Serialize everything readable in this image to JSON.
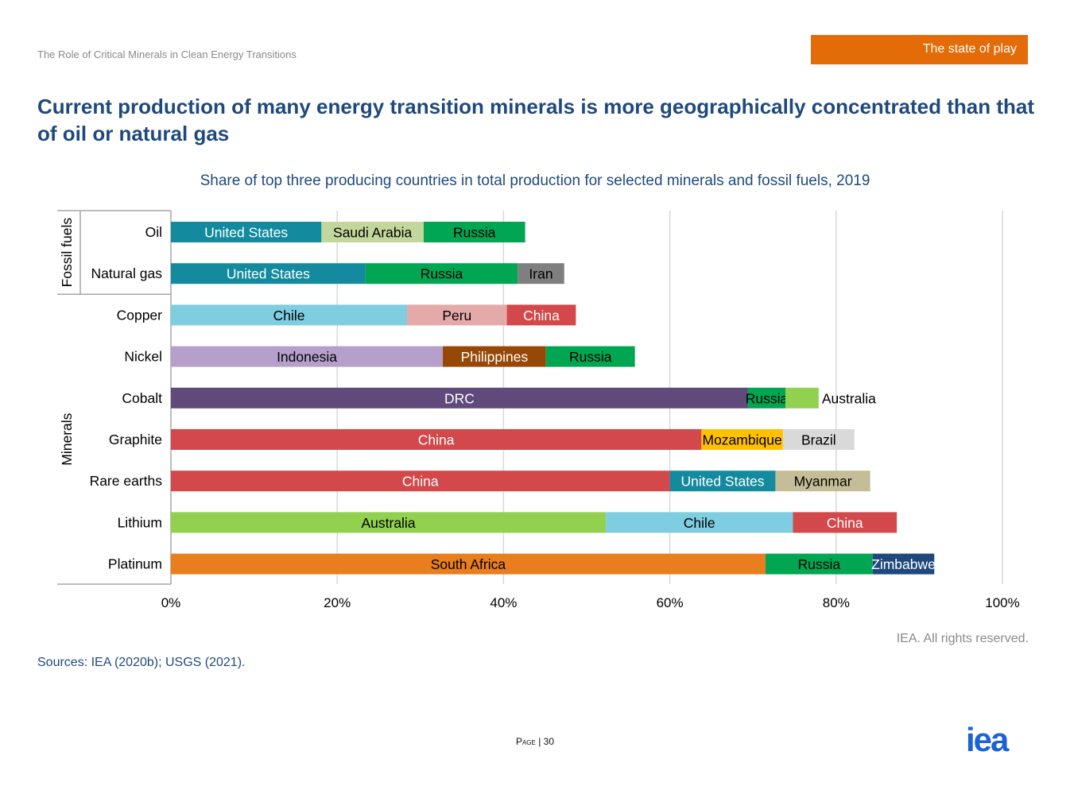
{
  "header": {
    "report_title": "The Role of Critical Minerals in Clean Energy Transitions",
    "section_badge": "The state of play",
    "page_title": "Current production of many energy transition minerals is more geographically concentrated than that of oil or natural gas"
  },
  "chart_data": {
    "type": "bar",
    "orientation": "horizontal",
    "stacked": true,
    "title": "Share of top three producing countries in total production for selected minerals and fossil fuels, 2019",
    "xlim": [
      0,
      100
    ],
    "x_ticks": [
      "0%",
      "20%",
      "40%",
      "60%",
      "80%",
      "100%"
    ],
    "grid": true,
    "groups": [
      {
        "name": "Fossil fuels",
        "categories": [
          "Oil",
          "Natural gas"
        ]
      },
      {
        "name": "Minerals",
        "categories": [
          "Copper",
          "Nickel",
          "Cobalt",
          "Graphite",
          "Rare earths",
          "Lithium",
          "Platinum"
        ]
      }
    ],
    "categories": [
      "Oil",
      "Natural gas",
      "Copper",
      "Nickel",
      "Cobalt",
      "Graphite",
      "Rare earths",
      "Lithium",
      "Platinum"
    ],
    "bars": [
      {
        "category": "Oil",
        "segments": [
          {
            "country": "United States",
            "value": 18.1,
            "color": "#138a9e",
            "text_color": "#ffffff"
          },
          {
            "country": "Saudi Arabia",
            "value": 12.3,
            "color": "#c3d69b",
            "text_color": "#000000"
          },
          {
            "country": "Russia",
            "value": 12.2,
            "color": "#00a651",
            "text_color": "#000000"
          }
        ]
      },
      {
        "category": "Natural gas",
        "segments": [
          {
            "country": "United States",
            "value": 23.4,
            "color": "#138a9e",
            "text_color": "#ffffff"
          },
          {
            "country": "Russia",
            "value": 18.3,
            "color": "#00a651",
            "text_color": "#000000"
          },
          {
            "country": "Iran",
            "value": 5.6,
            "color": "#7f7f7f",
            "text_color": "#000000"
          }
        ]
      },
      {
        "category": "Copper",
        "segments": [
          {
            "country": "Chile",
            "value": 28.4,
            "color": "#7fcde0",
            "text_color": "#000000"
          },
          {
            "country": "Peru",
            "value": 12.0,
            "color": "#e4a9a9",
            "text_color": "#000000"
          },
          {
            "country": "China",
            "value": 8.3,
            "color": "#d2484b",
            "text_color": "#ffffff"
          }
        ]
      },
      {
        "category": "Nickel",
        "segments": [
          {
            "country": "Indonesia",
            "value": 32.7,
            "color": "#b6a0cb",
            "text_color": "#000000"
          },
          {
            "country": "Philippines",
            "value": 12.4,
            "color": "#974806",
            "text_color": "#ffffff"
          },
          {
            "country": "Russia",
            "value": 10.7,
            "color": "#00a651",
            "text_color": "#000000"
          }
        ]
      },
      {
        "category": "Cobalt",
        "segments": [
          {
            "country": "DRC",
            "value": 69.4,
            "color": "#604a7b",
            "text_color": "#ffffff"
          },
          {
            "country": "Russia",
            "value": 4.5,
            "color": "#00a651",
            "text_color": "#000000"
          },
          {
            "country": "Australia",
            "value": 4.0,
            "color": "#92d050",
            "text_color": "#000000",
            "label_outside": true
          }
        ]
      },
      {
        "category": "Graphite",
        "segments": [
          {
            "country": "China",
            "value": 63.8,
            "color": "#d2484b",
            "text_color": "#ffffff"
          },
          {
            "country": "Mozambique",
            "value": 9.8,
            "color": "#ffc000",
            "text_color": "#000000"
          },
          {
            "country": "Brazil",
            "value": 8.6,
            "color": "#d9d9d9",
            "text_color": "#000000"
          }
        ]
      },
      {
        "category": "Rare earths",
        "segments": [
          {
            "country": "China",
            "value": 60.0,
            "color": "#d2484b",
            "text_color": "#ffffff"
          },
          {
            "country": "United States",
            "value": 12.7,
            "color": "#138a9e",
            "text_color": "#ffffff"
          },
          {
            "country": "Myanmar",
            "value": 11.4,
            "color": "#c4bd97",
            "text_color": "#000000"
          }
        ]
      },
      {
        "category": "Lithium",
        "segments": [
          {
            "country": "Australia",
            "value": 52.3,
            "color": "#92d050",
            "text_color": "#000000"
          },
          {
            "country": "Chile",
            "value": 22.5,
            "color": "#7fcde0",
            "text_color": "#000000"
          },
          {
            "country": "China",
            "value": 12.5,
            "color": "#d2484b",
            "text_color": "#ffffff"
          }
        ]
      },
      {
        "category": "Platinum",
        "segments": [
          {
            "country": "South Africa",
            "value": 71.5,
            "color": "#e87e1e",
            "text_color": "#000000"
          },
          {
            "country": "Russia",
            "value": 12.9,
            "color": "#00a651",
            "text_color": "#000000"
          },
          {
            "country": "Zimbabwe",
            "value": 7.4,
            "color": "#1f497d",
            "text_color": "#ffffff"
          }
        ]
      }
    ]
  },
  "footer": {
    "copyright": "IEA. All rights reserved.",
    "sources": "Sources: IEA (2020b); USGS (2021).",
    "page_label": "Page",
    "page_number": "30",
    "logo_text": "iea"
  }
}
